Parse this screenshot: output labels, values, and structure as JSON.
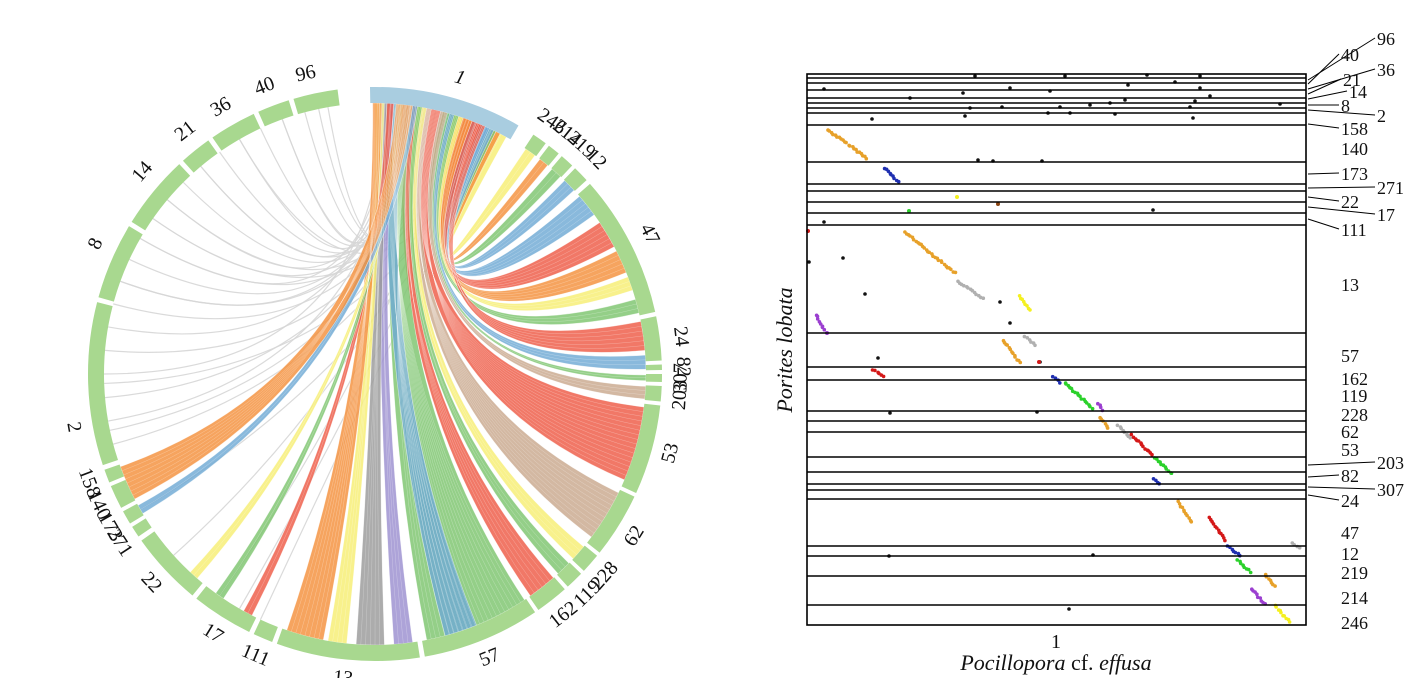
{
  "colors": {
    "ring_query": "#a9cde0",
    "ring_target": "#a8d88f",
    "link_grey": "#d6d6d6",
    "orange": "#f4903c",
    "blue": "#6fa9d4",
    "green": "#7cc46e",
    "red": "#ee5a45",
    "yellow": "#f7ee73",
    "grey": "#9a9a9a",
    "purple": "#9b8fcf",
    "tan": "#c9a88e",
    "dot_black": "#111111",
    "dot_orange": "#e7a12a",
    "dot_blue": "#1f2fb0",
    "dot_green": "#2bd12b",
    "dot_red": "#d41818",
    "dot_yellow": "#f4f020",
    "dot_grey": "#b0b0b0",
    "dot_purple": "#9b3fd0",
    "dot_brown": "#8b4513"
  },
  "circos": {
    "query_contig": "1",
    "target_contigs": [
      "96",
      "40",
      "36",
      "21",
      "14",
      "8",
      "2",
      "158",
      "140",
      "173",
      "271",
      "22",
      "17",
      "111",
      "13",
      "57",
      "162",
      "119",
      "228",
      "62",
      "53",
      "203",
      "307",
      "82",
      "24",
      "47",
      "12",
      "219",
      "214",
      "246"
    ]
  },
  "dotplot": {
    "x_tick": "1",
    "x_title_genus": "Pocillopora",
    "x_title_cf": " cf. ",
    "x_title_species": "effusa",
    "y_title": "Porites lobata",
    "contigs_top_to_bottom": [
      "96",
      "40",
      "36",
      "21",
      "14",
      "8",
      "2",
      "158",
      "140",
      "173",
      "271",
      "22",
      "17",
      "111",
      "13",
      "57",
      "162",
      "119",
      "228",
      "62",
      "53",
      "203",
      "82",
      "307",
      "24",
      "47",
      "12",
      "219",
      "214",
      "246"
    ]
  }
}
